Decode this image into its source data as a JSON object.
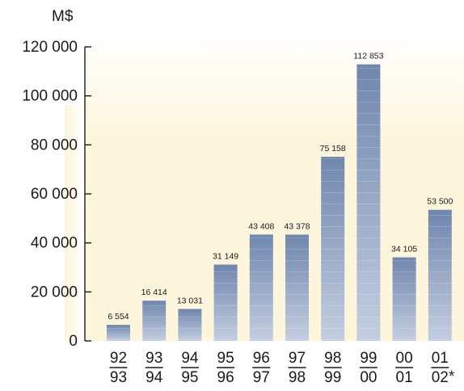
{
  "chart_data": {
    "type": "bar",
    "unit_label": "M$",
    "categories": [
      {
        "top": "92",
        "bottom": "93"
      },
      {
        "top": "93",
        "bottom": "94"
      },
      {
        "top": "94",
        "bottom": "95"
      },
      {
        "top": "95",
        "bottom": "96"
      },
      {
        "top": "96",
        "bottom": "97"
      },
      {
        "top": "97",
        "bottom": "98"
      },
      {
        "top": "98",
        "bottom": "99"
      },
      {
        "top": "99",
        "bottom": "00"
      },
      {
        "top": "00",
        "bottom": "01"
      },
      {
        "top": "01",
        "bottom": "02"
      }
    ],
    "values": [
      6554,
      16414,
      13031,
      31149,
      43408,
      43378,
      75158,
      112853,
      34105,
      53500
    ],
    "value_labels": [
      "6 554",
      "16 414",
      "13 031",
      "31 149",
      "43 408",
      "43 378",
      "75 158",
      "112 853",
      "34 105",
      "53 500"
    ],
    "y_ticks": [
      {
        "value": 0,
        "label": "0"
      },
      {
        "value": 20000,
        "label": "20 000"
      },
      {
        "value": 40000,
        "label": "40 000"
      },
      {
        "value": 60000,
        "label": "60 000"
      },
      {
        "value": 80000,
        "label": "80 000"
      },
      {
        "value": 100000,
        "label": "100 000"
      },
      {
        "value": 120000,
        "label": "120 000"
      }
    ],
    "ylim": [
      0,
      120000
    ],
    "footnote_marker": "*",
    "grid": false,
    "colors": {
      "panel": "#fdf6dc",
      "bar_top": "#6f86ad",
      "bar_bottom": "#c4cee1",
      "axis": "#1a1a1a"
    }
  }
}
